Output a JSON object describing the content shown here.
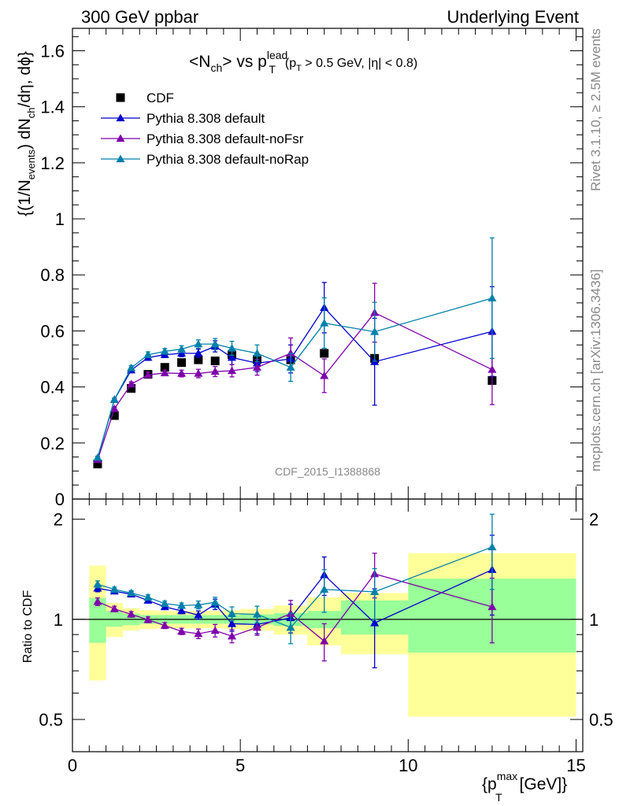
{
  "header": {
    "left": "300 GeV ppbar",
    "right": "Underlying Event"
  },
  "side": {
    "rivet": "Rivet 3.1.10, ≥ 2.5M events",
    "mcplots": "mcplots.cern.ch [arXiv:1306.3436]"
  },
  "plot_title": {
    "main": "<N",
    "ch": "ch",
    "vs": "> vs p",
    "lead": "lead",
    "T": "T",
    "cond_open": "(p",
    "cond_T": "T",
    "cond_rest": " > 0.5 GeV, |η| < 0.8)"
  },
  "watermark": "CDF_2015_I1388868",
  "ylabel_main": "{(1/N",
  "ylabel_events": "events",
  "ylabel_mid": ") dN",
  "ylabel_ch": "ch",
  "ylabel_end": "/dη, dϕ}",
  "ylabel_ratio": "Ratio to CDF",
  "xlabel": {
    "open": "{p",
    "sup": "max",
    "sub": "T",
    "close": " [GeV]}"
  },
  "colors": {
    "cdf": "#000000",
    "default": "#0000cc",
    "noFsr": "#7f00aa",
    "noRap": "#0080aa",
    "band_outer": "#ffff99",
    "band_inner": "#99ff99"
  },
  "chart_data": [
    {
      "type": "scatter",
      "panel": "main",
      "x_range": [
        0,
        15.2
      ],
      "ylim": [
        0,
        1.68
      ],
      "x_ticks": [
        0,
        5,
        10,
        15
      ],
      "y_ticks": [
        0,
        0.2,
        0.4,
        0.6,
        0.8,
        1,
        1.2,
        1.4,
        1.6
      ],
      "y_tick_labels": [
        "0",
        "0.2",
        "0.4",
        "0.6",
        "0.8",
        "1",
        "1.2",
        "1.4",
        "1.6"
      ],
      "legend_position": "top-left",
      "series": [
        {
          "name": "CDF",
          "key": "cdf",
          "marker": "square",
          "line": false,
          "x": [
            0.75,
            1.25,
            1.75,
            2.25,
            2.75,
            3.25,
            3.75,
            4.25,
            4.75,
            5.5,
            6.5,
            7.5,
            9.0,
            12.5
          ],
          "y": [
            0.125,
            0.298,
            0.395,
            0.445,
            0.47,
            0.487,
            0.497,
            0.493,
            0.515,
            0.498,
            0.497,
            0.52,
            0.502,
            0.423
          ],
          "err": [
            0.01,
            0.01,
            0.01,
            0.01,
            0.01,
            0.01,
            0.01,
            0.01,
            0.01,
            0.01,
            0.01,
            0.01,
            0.01,
            0.01
          ]
        },
        {
          "name": "Pythia 8.308 default",
          "key": "default",
          "marker": "triangle",
          "line": true,
          "x": [
            0.75,
            1.25,
            1.75,
            2.25,
            2.75,
            3.25,
            3.75,
            4.25,
            4.75,
            5.5,
            6.5,
            7.5,
            9.0,
            12.5
          ],
          "y": [
            0.145,
            0.355,
            0.46,
            0.505,
            0.515,
            0.52,
            0.52,
            0.545,
            0.505,
            0.485,
            0.5,
            0.683,
            0.49,
            0.598
          ],
          "err": [
            0.005,
            0.005,
            0.008,
            0.01,
            0.01,
            0.012,
            0.015,
            0.02,
            0.025,
            0.03,
            0.05,
            0.09,
            0.155,
            0.16
          ]
        },
        {
          "name": "Pythia 8.308 default-noFsr",
          "key": "noFsr",
          "marker": "triangle",
          "line": true,
          "x": [
            0.75,
            1.25,
            1.75,
            2.25,
            2.75,
            3.25,
            3.75,
            4.25,
            4.75,
            5.5,
            6.5,
            7.5,
            9.0,
            12.5
          ],
          "y": [
            0.14,
            0.322,
            0.41,
            0.443,
            0.45,
            0.448,
            0.448,
            0.455,
            0.458,
            0.47,
            0.52,
            0.44,
            0.665,
            0.462
          ],
          "err": [
            0.005,
            0.005,
            0.008,
            0.01,
            0.01,
            0.012,
            0.015,
            0.018,
            0.022,
            0.028,
            0.055,
            0.06,
            0.105,
            0.125
          ]
        },
        {
          "name": "Pythia 8.308 default-noRap",
          "key": "noRap",
          "marker": "triangle",
          "line": true,
          "x": [
            0.75,
            1.25,
            1.75,
            2.25,
            2.75,
            3.25,
            3.75,
            4.25,
            4.75,
            5.5,
            6.5,
            7.5,
            9.0,
            12.5
          ],
          "y": [
            0.148,
            0.355,
            0.468,
            0.515,
            0.527,
            0.535,
            0.553,
            0.553,
            0.538,
            0.52,
            0.47,
            0.628,
            0.597,
            0.717
          ],
          "err": [
            0.005,
            0.005,
            0.008,
            0.01,
            0.01,
            0.012,
            0.015,
            0.02,
            0.025,
            0.03,
            0.05,
            0.09,
            0.105,
            0.215
          ]
        }
      ]
    },
    {
      "type": "scatter",
      "panel": "ratio",
      "x_range": [
        0,
        15.2
      ],
      "ylim": [
        0.4,
        2.3
      ],
      "y_scale": "log",
      "x_ticks": [
        0,
        5,
        10,
        15
      ],
      "x_tick_labels": [
        "0",
        "5",
        "10",
        "15"
      ],
      "y_ticks": [
        0.5,
        1,
        2
      ],
      "y_tick_labels": [
        "0.5",
        "1",
        "2"
      ],
      "bands": [
        {
          "x0": 0.5,
          "x1": 1.0,
          "outer": [
            0.655,
            1.45
          ],
          "inner": [
            0.85,
            1.16
          ]
        },
        {
          "x0": 1.0,
          "x1": 1.5,
          "outer": [
            0.885,
            1.12
          ],
          "inner": [
            0.95,
            1.06
          ]
        },
        {
          "x0": 1.5,
          "x1": 2.0,
          "outer": [
            0.925,
            1.08
          ],
          "inner": [
            0.96,
            1.04
          ]
        },
        {
          "x0": 2.0,
          "x1": 2.5,
          "outer": [
            0.935,
            1.065
          ],
          "inner": [
            0.97,
            1.03
          ]
        },
        {
          "x0": 2.5,
          "x1": 3.0,
          "outer": [
            0.94,
            1.06
          ],
          "inner": [
            0.97,
            1.03
          ]
        },
        {
          "x0": 3.0,
          "x1": 3.5,
          "outer": [
            0.94,
            1.06
          ],
          "inner": [
            0.97,
            1.03
          ]
        },
        {
          "x0": 3.5,
          "x1": 4.0,
          "outer": [
            0.94,
            1.06
          ],
          "inner": [
            0.97,
            1.03
          ]
        },
        {
          "x0": 4.0,
          "x1": 4.5,
          "outer": [
            0.94,
            1.06
          ],
          "inner": [
            0.97,
            1.03
          ]
        },
        {
          "x0": 4.5,
          "x1": 5.0,
          "outer": [
            0.935,
            1.065
          ],
          "inner": [
            0.97,
            1.03
          ]
        },
        {
          "x0": 5.0,
          "x1": 6.0,
          "outer": [
            0.925,
            1.075
          ],
          "inner": [
            0.965,
            1.035
          ]
        },
        {
          "x0": 6.0,
          "x1": 7.0,
          "outer": [
            0.9,
            1.1
          ],
          "inner": [
            0.955,
            1.045
          ]
        },
        {
          "x0": 7.0,
          "x1": 8.0,
          "outer": [
            0.835,
            1.165
          ],
          "inner": [
            0.94,
            1.06
          ]
        },
        {
          "x0": 8.0,
          "x1": 10.0,
          "outer": [
            0.785,
            1.2
          ],
          "inner": [
            0.9,
            1.14
          ]
        },
        {
          "x0": 10.0,
          "x1": 15.0,
          "outer": [
            0.51,
            1.58
          ],
          "inner": [
            0.795,
            1.325
          ]
        }
      ],
      "series": [
        {
          "name": "Pythia 8.308 default",
          "key": "default",
          "x": [
            0.75,
            1.25,
            1.75,
            2.25,
            2.75,
            3.25,
            3.75,
            4.25,
            4.75,
            5.5,
            6.5,
            7.5,
            9.0,
            12.5
          ],
          "y": [
            1.24,
            1.215,
            1.19,
            1.14,
            1.09,
            1.06,
            1.03,
            1.11,
            0.97,
            0.965,
            1.01,
            1.36,
            0.975,
            1.41
          ],
          "err": [
            0.03,
            0.02,
            0.02,
            0.02,
            0.02,
            0.02,
            0.03,
            0.04,
            0.05,
            0.06,
            0.1,
            0.18,
            0.26,
            0.38
          ]
        },
        {
          "name": "Pythia 8.308 default-noFsr",
          "key": "noFsr",
          "x": [
            0.75,
            1.25,
            1.75,
            2.25,
            2.75,
            3.25,
            3.75,
            4.25,
            4.75,
            5.5,
            6.5,
            7.5,
            9.0,
            12.5
          ],
          "y": [
            1.13,
            1.075,
            1.035,
            0.997,
            0.958,
            0.92,
            0.905,
            0.925,
            0.89,
            0.945,
            1.04,
            0.86,
            1.37,
            1.09
          ],
          "err": [
            0.03,
            0.02,
            0.02,
            0.02,
            0.02,
            0.02,
            0.03,
            0.04,
            0.04,
            0.05,
            0.1,
            0.11,
            0.21,
            0.24
          ]
        },
        {
          "name": "Pythia 8.308 default-noRap",
          "key": "noRap",
          "x": [
            0.75,
            1.25,
            1.75,
            2.25,
            2.75,
            3.25,
            3.75,
            4.25,
            4.75,
            5.5,
            6.5,
            7.5,
            9.0,
            12.5
          ],
          "y": [
            1.275,
            1.23,
            1.2,
            1.165,
            1.115,
            1.1,
            1.105,
            1.125,
            1.04,
            1.035,
            0.945,
            1.23,
            1.21,
            1.65
          ],
          "err": [
            0.03,
            0.02,
            0.02,
            0.02,
            0.02,
            0.02,
            0.03,
            0.04,
            0.05,
            0.06,
            0.1,
            0.18,
            0.21,
            0.42
          ]
        }
      ]
    }
  ]
}
